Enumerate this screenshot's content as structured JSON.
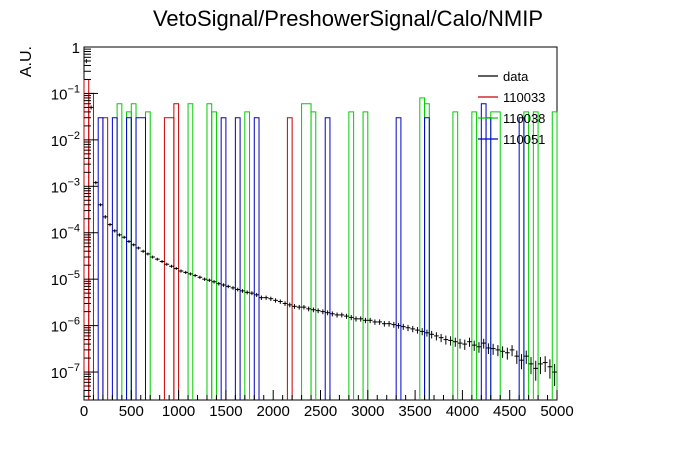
{
  "chart_data": {
    "type": "histogram",
    "title": "VetoSignal/PreshowerSignal/Calo/NMIP",
    "xlabel": "",
    "ylabel": "A.U.",
    "xlim": [
      0,
      5000
    ],
    "ylim": [
      2.5e-08,
      1
    ],
    "yscale": "log",
    "bin_width": 50,
    "grid": false,
    "legend_position": "top-right",
    "x_ticks": [
      "0",
      "500",
      "1000",
      "1500",
      "2000",
      "2500",
      "3000",
      "3500",
      "4000",
      "4500",
      "5000"
    ],
    "y_ticks": [
      {
        "value": 1,
        "label": "1"
      },
      {
        "value": 0.1,
        "base": "10",
        "exp": "−1"
      },
      {
        "value": 0.01,
        "base": "10",
        "exp": "−2"
      },
      {
        "value": 0.001,
        "base": "10",
        "exp": "−3"
      },
      {
        "value": 0.0001,
        "base": "10",
        "exp": "−4"
      },
      {
        "value": 1e-05,
        "base": "10",
        "exp": "−5"
      },
      {
        "value": 1e-06,
        "base": "10",
        "exp": "−6"
      },
      {
        "value": 1e-07,
        "base": "10",
        "exp": "−7"
      }
    ],
    "series": [
      {
        "name": "data",
        "color": "#000000",
        "style": "points",
        "x": [
          25,
          75,
          125,
          175,
          225,
          275,
          325,
          375,
          425,
          475,
          525,
          575,
          625,
          675,
          725,
          775,
          825,
          875,
          925,
          975,
          1025,
          1075,
          1125,
          1175,
          1225,
          1275,
          1325,
          1375,
          1425,
          1475,
          1525,
          1575,
          1625,
          1675,
          1725,
          1775,
          1825,
          1875,
          1925,
          1975,
          2025,
          2075,
          2125,
          2175,
          2225,
          2275,
          2325,
          2375,
          2425,
          2475,
          2525,
          2575,
          2625,
          2675,
          2725,
          2775,
          2825,
          2875,
          2925,
          2975,
          3025,
          3075,
          3125,
          3175,
          3225,
          3275,
          3325,
          3375,
          3425,
          3475,
          3525,
          3575,
          3625,
          3675,
          3725,
          3775,
          3825,
          3875,
          3925,
          3975,
          4025,
          4075,
          4125,
          4175,
          4225,
          4275,
          4325,
          4375,
          4425,
          4475,
          4525,
          4575,
          4625,
          4675,
          4725,
          4775,
          4825,
          4875,
          4925,
          4975
        ],
        "values": [
          0.5,
          0.05,
          0.0012,
          0.0004,
          0.00022,
          0.00015,
          0.00011,
          9e-05,
          8e-05,
          6.5e-05,
          5.5e-05,
          4.7e-05,
          4e-05,
          3.5e-05,
          3e-05,
          2.7e-05,
          2.4e-05,
          2.1e-05,
          1.9e-05,
          1.7e-05,
          1.5e-05,
          1.4e-05,
          1.3e-05,
          1.2e-05,
          1.1e-05,
          1e-05,
          9.5e-06,
          8.8e-06,
          8e-06,
          7.5e-06,
          7e-06,
          6.5e-06,
          6e-06,
          5.6e-06,
          5.2e-06,
          5e-06,
          4.6e-06,
          4e-06,
          4e-06,
          3.8e-06,
          3.5e-06,
          3.3e-06,
          3e-06,
          2.8e-06,
          2.6e-06,
          2.5e-06,
          2.5e-06,
          2.3e-06,
          2.2e-06,
          2.1e-06,
          2e-06,
          1.9e-06,
          1.8e-06,
          1.7e-06,
          1.7e-06,
          1.6e-06,
          1.5e-06,
          1.4e-06,
          1.4e-06,
          1.3e-06,
          1.3e-06,
          1.2e-06,
          1.2e-06,
          1.1e-06,
          1.1e-06,
          1.05e-06,
          1e-06,
          9.5e-07,
          9e-07,
          8.5e-07,
          8e-07,
          7.5e-07,
          7e-07,
          6.5e-07,
          6e-07,
          5.5e-07,
          5e-07,
          4.8e-07,
          4.5e-07,
          4.2e-07,
          4e-07,
          4.5e-07,
          3.8e-07,
          3.5e-07,
          4.2e-07,
          3.3e-07,
          3.2e-07,
          3e-07,
          2.8e-07,
          2.6e-07,
          3e-07,
          2.2e-07,
          1.8e-07,
          2.2e-07,
          1.5e-07,
          1.2e-07,
          1.5e-07,
          1.6e-07,
          1.3e-07,
          1e-07
        ],
        "errors": [
          0.05,
          0.005,
          0.0001,
          3e-05,
          2e-05,
          1.2e-05,
          9e-06,
          7e-06,
          6e-06,
          5e-06,
          4e-06,
          3.5e-06,
          3e-06,
          2.5e-06,
          2.2e-06,
          2e-06,
          1.8e-06,
          1.6e-06,
          1.4e-06,
          1.3e-06,
          1.2e-06,
          1.1e-06,
          1e-06,
          9.5e-07,
          9e-07,
          8.5e-07,
          8e-07,
          7.5e-07,
          7e-07,
          6.5e-07,
          6e-07,
          5.8e-07,
          5.5e-07,
          5.2e-07,
          5e-07,
          4.8e-07,
          4.6e-07,
          4.4e-07,
          4.2e-07,
          4e-07,
          3.8e-07,
          3.6e-07,
          3.4e-07,
          3.2e-07,
          3e-07,
          2.9e-07,
          2.8e-07,
          2.7e-07,
          2.6e-07,
          2.5e-07,
          2.4e-07,
          2.3e-07,
          2.2e-07,
          2.1e-07,
          2e-07,
          2e-07,
          1.9e-07,
          1.8e-07,
          1.8e-07,
          1.7e-07,
          1.7e-07,
          1.6e-07,
          1.6e-07,
          1.5e-07,
          1.5e-07,
          1.5e-07,
          1.4e-07,
          1.4e-07,
          1.4e-07,
          1.3e-07,
          1.3e-07,
          1.3e-07,
          1.2e-07,
          1.2e-07,
          1.2e-07,
          1.1e-07,
          1.1e-07,
          1.1e-07,
          1e-07,
          1e-07,
          1e-07,
          1e-07,
          9.5e-08,
          9e-08,
          1e-07,
          8.5e-08,
          8.5e-08,
          8e-08,
          7.8e-08,
          7.5e-08,
          8e-08,
          7e-08,
          6.5e-08,
          7e-08,
          6e-08,
          5.5e-08,
          6e-08,
          6e-08,
          5.8e-08,
          5e-08
        ]
      },
      {
        "name": "110033",
        "color": "#cc0000",
        "style": "step",
        "bins": [
          {
            "x0": 0,
            "x1": 50,
            "v": 0.2
          },
          {
            "x0": 50,
            "x1": 100,
            "v": 0.1
          },
          {
            "x0": 200,
            "x1": 250,
            "v": 0.03
          },
          {
            "x0": 850,
            "x1": 950,
            "v": 0.03
          },
          {
            "x0": 950,
            "x1": 1000,
            "v": 0.06
          },
          {
            "x0": 2150,
            "x1": 2200,
            "v": 0.03
          }
        ]
      },
      {
        "name": "110038",
        "color": "#00cc00",
        "style": "step",
        "bins": [
          {
            "x0": 350,
            "x1": 400,
            "v": 0.06
          },
          {
            "x0": 450,
            "x1": 500,
            "v": 0.04
          },
          {
            "x0": 500,
            "x1": 550,
            "v": 0.06
          },
          {
            "x0": 650,
            "x1": 700,
            "v": 0.04
          },
          {
            "x0": 1100,
            "x1": 1150,
            "v": 0.06
          },
          {
            "x0": 1300,
            "x1": 1350,
            "v": 0.06
          },
          {
            "x0": 1350,
            "x1": 1400,
            "v": 0.04
          },
          {
            "x0": 1700,
            "x1": 1750,
            "v": 0.04
          },
          {
            "x0": 2300,
            "x1": 2400,
            "v": 0.06
          },
          {
            "x0": 2400,
            "x1": 2450,
            "v": 0.04
          },
          {
            "x0": 2800,
            "x1": 2850,
            "v": 0.04
          },
          {
            "x0": 2950,
            "x1": 3000,
            "v": 0.04
          },
          {
            "x0": 3550,
            "x1": 3600,
            "v": 0.08
          },
          {
            "x0": 3600,
            "x1": 3650,
            "v": 0.06
          },
          {
            "x0": 3900,
            "x1": 3950,
            "v": 0.04
          },
          {
            "x0": 4100,
            "x1": 4150,
            "v": 0.04
          },
          {
            "x0": 4300,
            "x1": 4400,
            "v": 0.04
          },
          {
            "x0": 4650,
            "x1": 4700,
            "v": 0.04
          },
          {
            "x0": 4750,
            "x1": 4800,
            "v": 0.04
          },
          {
            "x0": 4950,
            "x1": 5000,
            "v": 0.04
          }
        ]
      },
      {
        "name": "110051",
        "color": "#0000cc",
        "style": "step",
        "bins": [
          {
            "x0": 150,
            "x1": 200,
            "v": 0.03
          },
          {
            "x0": 300,
            "x1": 350,
            "v": 0.03
          },
          {
            "x0": 450,
            "x1": 500,
            "v": 0.03
          },
          {
            "x0": 550,
            "x1": 650,
            "v": 0.03
          },
          {
            "x0": 1450,
            "x1": 1500,
            "v": 0.03
          },
          {
            "x0": 1600,
            "x1": 1650,
            "v": 0.03
          },
          {
            "x0": 1800,
            "x1": 1850,
            "v": 0.03
          },
          {
            "x0": 2550,
            "x1": 2600,
            "v": 0.03
          },
          {
            "x0": 3300,
            "x1": 3350,
            "v": 0.03
          },
          {
            "x0": 3600,
            "x1": 3650,
            "v": 0.03
          },
          {
            "x0": 4200,
            "x1": 4250,
            "v": 0.06
          },
          {
            "x0": 4250,
            "x1": 4300,
            "v": 0.03
          },
          {
            "x0": 4600,
            "x1": 4650,
            "v": 0.03
          }
        ]
      }
    ]
  }
}
